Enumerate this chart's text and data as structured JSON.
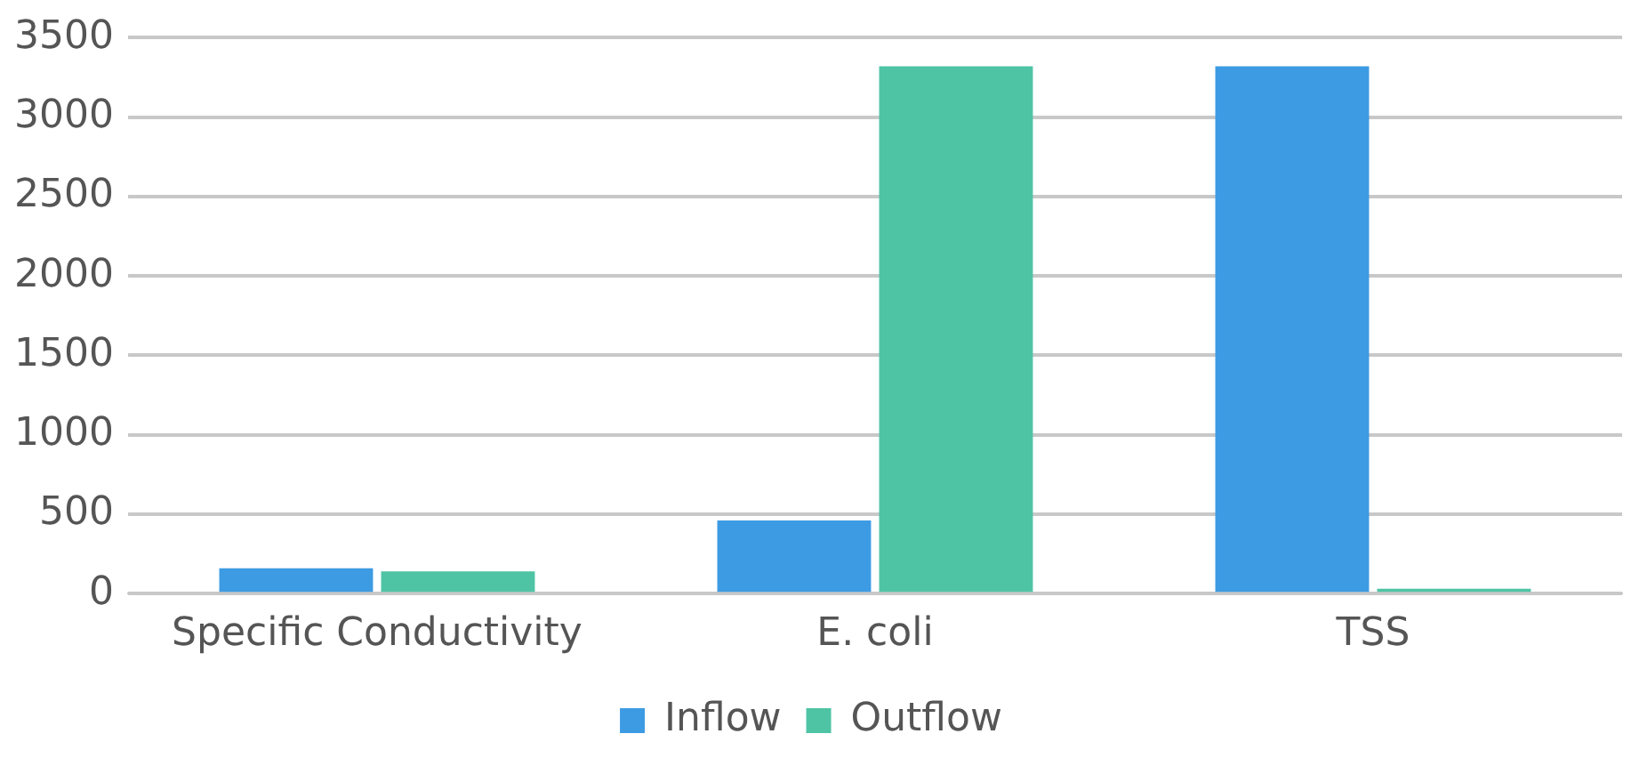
{
  "chart_data": {
    "type": "bar",
    "categories": [
      "Specific Conductivity",
      "E. coli",
      "TSS"
    ],
    "series": [
      {
        "name": "Inflow",
        "color": "#3d9be3",
        "values": [
          160,
          460,
          3320
        ]
      },
      {
        "name": "Outflow",
        "color": "#4ec4a5",
        "values": [
          140,
          3320,
          30
        ]
      }
    ],
    "ylim": [
      0,
      3500
    ],
    "yticks": [
      0,
      500,
      1000,
      1500,
      2000,
      2500,
      3000,
      3500
    ],
    "grid": "y",
    "legend": "bottom"
  }
}
